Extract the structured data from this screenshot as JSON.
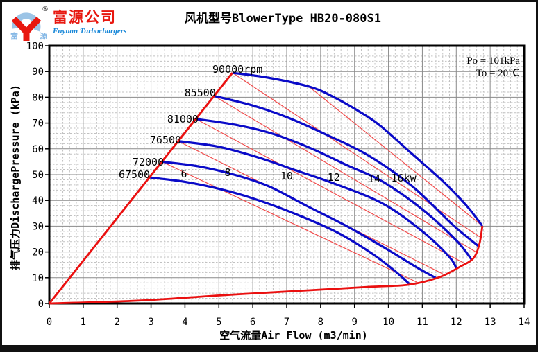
{
  "logo": {
    "company_cn": "富源公司",
    "company_en": "Fuyuan Turbochargers",
    "reg_mark": "®",
    "cn_left": "富",
    "cn_right": "源"
  },
  "chart_data": {
    "type": "line",
    "title": "风机型号BlowerType HB20-080S1",
    "xlabel": "空气流量Air Flow (m3/min)",
    "ylabel": "排气压力DischargePressure (kPa)",
    "xlim": [
      0,
      14
    ],
    "ylim": [
      0,
      100
    ],
    "x_ticks": [
      0,
      1,
      2,
      3,
      4,
      5,
      6,
      7,
      8,
      9,
      10,
      11,
      12,
      13,
      14
    ],
    "y_ticks": [
      0,
      10,
      20,
      30,
      40,
      50,
      60,
      70,
      80,
      90,
      100
    ],
    "x_minor_step": 0.2,
    "y_minor_step": 2,
    "grid": "major+minor",
    "conditions": [
      "Po = 101kPa",
      "To = 20℃"
    ],
    "colors": {
      "speed_curve": "#0a0ac8",
      "boundary": "#ea1010",
      "power_line": "#f14b4b",
      "grid_major": "#8a8a8a",
      "grid_minor": "#c1c1c1",
      "axis": "#000000"
    },
    "surge_line": [
      [
        0,
        0
      ],
      [
        5.4,
        89.5
      ]
    ],
    "bottom_boundary": [
      [
        0,
        0
      ],
      [
        2.6,
        1.1
      ],
      [
        5.1,
        3.2
      ],
      [
        7.5,
        5.0
      ],
      [
        9.5,
        6.5
      ],
      [
        10.6,
        7.3
      ],
      [
        11.5,
        10.2
      ],
      [
        12.1,
        14.2
      ],
      [
        12.5,
        17.5
      ],
      [
        12.68,
        23.0
      ],
      [
        12.77,
        30.1
      ]
    ],
    "speed_curves": [
      {
        "label": "67500",
        "rpm": 67500,
        "label_x": 2.97,
        "label_y": 48.7,
        "label_anchor": "end",
        "points": [
          [
            2.95,
            48.9
          ],
          [
            4.0,
            47.2
          ],
          [
            5.0,
            44.5
          ],
          [
            6.0,
            40.8
          ],
          [
            7.3,
            34.5
          ],
          [
            8.5,
            27.5
          ],
          [
            9.5,
            19.5
          ],
          [
            10.2,
            12.5
          ],
          [
            10.64,
            7.3
          ]
        ]
      },
      {
        "label": "72000",
        "rpm": 72000,
        "label_x": 3.38,
        "label_y": 53.5,
        "label_anchor": "end",
        "points": [
          [
            3.32,
            55.0
          ],
          [
            4.4,
            53.2
          ],
          [
            5.5,
            49.8
          ],
          [
            6.5,
            45.3
          ],
          [
            7.6,
            37.8
          ],
          [
            8.8,
            29.8
          ],
          [
            9.9,
            21.5
          ],
          [
            10.9,
            13.5
          ],
          [
            11.4,
            9.9
          ]
        ]
      },
      {
        "label": "76500",
        "rpm": 76500,
        "label_x": 3.89,
        "label_y": 62.1,
        "label_anchor": "end",
        "points": [
          [
            3.8,
            63.0
          ],
          [
            5.0,
            60.8
          ],
          [
            6.2,
            56.5
          ],
          [
            7.3,
            51.5
          ],
          [
            8.3,
            47.0
          ],
          [
            9.8,
            39.0
          ],
          [
            11.0,
            28.0
          ],
          [
            11.8,
            18.0
          ],
          [
            12.01,
            13.4
          ]
        ]
      },
      {
        "label": "81000",
        "rpm": 81000,
        "label_x": 4.4,
        "label_y": 70.2,
        "label_anchor": "end",
        "points": [
          [
            4.32,
            71.6
          ],
          [
            5.5,
            69.3
          ],
          [
            6.6,
            65.8
          ],
          [
            7.7,
            60.3
          ],
          [
            8.8,
            53.5
          ],
          [
            9.8,
            47.5
          ],
          [
            11.0,
            36.5
          ],
          [
            12.0,
            24.5
          ],
          [
            12.46,
            16.9
          ]
        ]
      },
      {
        "label": "85500",
        "rpm": 85500,
        "label_x": 4.91,
        "label_y": 80.4,
        "label_anchor": "end",
        "points": [
          [
            4.86,
            80.5
          ],
          [
            6.0,
            76.8
          ],
          [
            7.0,
            72.3
          ],
          [
            8.2,
            65.3
          ],
          [
            9.4,
            57.5
          ],
          [
            10.7,
            45.5
          ],
          [
            11.9,
            30.5
          ],
          [
            12.68,
            22.0
          ]
        ]
      },
      {
        "label": "90000rpm",
        "rpm": 90000,
        "label_x": 4.81,
        "label_y": 89.5,
        "label_anchor": "start",
        "points": [
          [
            5.4,
            89.5
          ],
          [
            6.5,
            87.5
          ],
          [
            7.7,
            84.0
          ],
          [
            8.4,
            80.0
          ],
          [
            9.2,
            74.0
          ],
          [
            9.8,
            68.5
          ],
          [
            10.7,
            58.0
          ],
          [
            11.6,
            47.5
          ],
          [
            12.3,
            38.0
          ],
          [
            12.77,
            30.1
          ]
        ]
      }
    ],
    "power_lines": [
      {
        "label": "6",
        "kw": 6,
        "label_x": 3.97,
        "label_y": 48.9,
        "points": [
          [
            3.32,
            55.0
          ],
          [
            10.85,
            8.2
          ]
        ]
      },
      {
        "label": "8",
        "kw": 8,
        "label_x": 5.26,
        "label_y": 49.5,
        "points": [
          [
            3.8,
            63.0
          ],
          [
            11.6,
            11.5
          ]
        ]
      },
      {
        "label": "10",
        "kw": 10,
        "label_x": 7.0,
        "label_y": 48.1,
        "points": [
          [
            4.32,
            71.6
          ],
          [
            12.25,
            15.5
          ]
        ]
      },
      {
        "label": "12",
        "kw": 12,
        "label_x": 8.39,
        "label_y": 47.6,
        "points": [
          [
            4.86,
            80.5
          ],
          [
            12.58,
            20.0
          ]
        ]
      },
      {
        "label": "14",
        "kw": 14,
        "label_x": 9.58,
        "label_y": 47.0,
        "points": [
          [
            5.4,
            89.5
          ],
          [
            12.73,
            25.5
          ]
        ]
      },
      {
        "label": "16kw",
        "kw": 16,
        "label_x": 10.45,
        "label_y": 47.3,
        "points": [
          [
            7.67,
            84.0
          ],
          [
            12.77,
            30.1
          ]
        ]
      }
    ]
  }
}
